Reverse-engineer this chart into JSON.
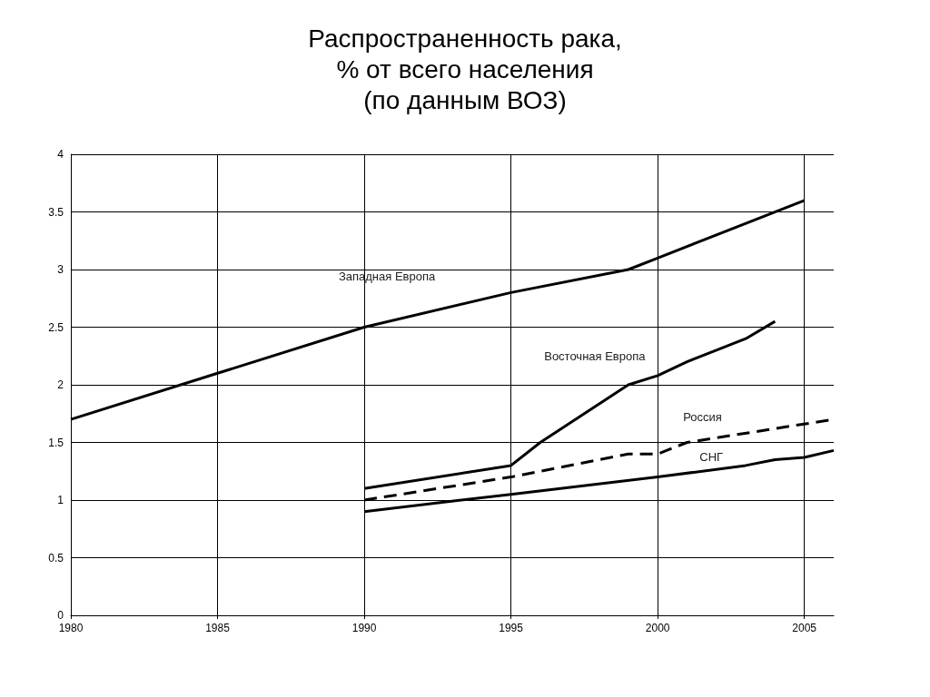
{
  "chart_data": {
    "type": "line",
    "title": "Распространенность рака,\n% от всего населения\n(по данным ВОЗ)",
    "xlim": [
      1980,
      2006
    ],
    "xticks": [
      1980,
      1985,
      1990,
      1995,
      2000,
      2005
    ],
    "ylim": [
      0,
      4
    ],
    "yticks": [
      0,
      0.5,
      1,
      1.5,
      2,
      2.5,
      3,
      3.5,
      4
    ],
    "grid": true,
    "legend": false,
    "marker": "none",
    "series": [
      {
        "name": "Западная Европа",
        "color": "#000000",
        "line_style": "solid",
        "x": [
          1980,
          1985,
          1990,
          1995,
          1999,
          2000,
          2005
        ],
        "values": [
          1.7,
          2.1,
          2.5,
          2.8,
          3.0,
          3.1,
          3.6
        ]
      },
      {
        "name": "Восточная Европа",
        "color": "#000000",
        "line_style": "solid",
        "x": [
          1990,
          1995,
          1996,
          1999,
          2000,
          2001,
          2002,
          2003,
          2004
        ],
        "values": [
          1.1,
          1.3,
          1.5,
          2.0,
          2.08,
          2.2,
          2.3,
          2.4,
          2.55
        ]
      },
      {
        "name": "Россия",
        "color": "#000000",
        "line_style": "dashed",
        "x": [
          1990,
          1995,
          1999,
          2000,
          2001,
          2006
        ],
        "values": [
          1.0,
          1.2,
          1.4,
          1.4,
          1.5,
          1.7
        ]
      },
      {
        "name": "СНГ",
        "color": "#000000",
        "line_style": "solid",
        "x": [
          1990,
          1995,
          2000,
          2003,
          2004,
          2005,
          2006
        ],
        "values": [
          0.9,
          1.05,
          1.2,
          1.3,
          1.35,
          1.37,
          1.43
        ]
      }
    ]
  }
}
